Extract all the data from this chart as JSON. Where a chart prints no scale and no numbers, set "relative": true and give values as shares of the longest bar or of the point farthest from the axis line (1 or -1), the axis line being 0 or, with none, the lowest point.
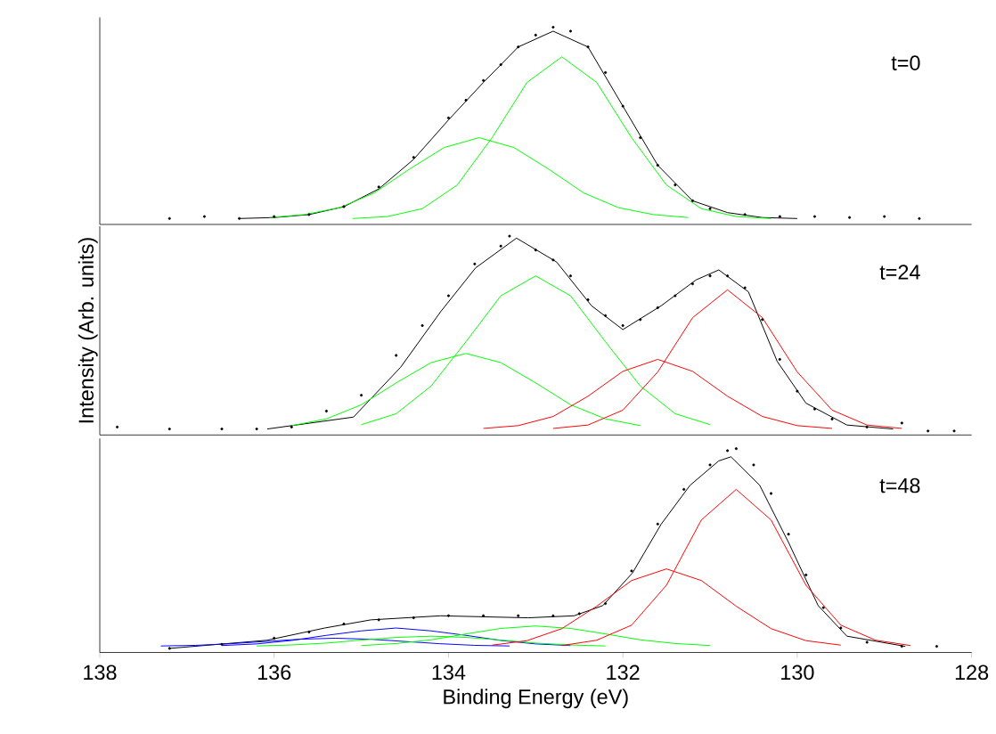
{
  "chart_data": [
    {
      "type": "line",
      "relative": true,
      "xlim": [
        138,
        128
      ],
      "tick_labels": false,
      "annotations": [
        "t=0"
      ],
      "series": [
        {
          "type": "scatter",
          "color": "#000000",
          "x": [
            137.2,
            136.8,
            136.4,
            136.0,
            135.6,
            135.2,
            134.8,
            134.4,
            134.0,
            133.8,
            133.6,
            133.4,
            133.2,
            133.0,
            132.8,
            132.6,
            132.4,
            132.2,
            132.0,
            131.8,
            131.6,
            131.4,
            131.2,
            131.0,
            130.6,
            130.2,
            129.8,
            129.4,
            129.0,
            128.6
          ],
          "values": [
            0.03,
            0.04,
            0.03,
            0.04,
            0.05,
            0.09,
            0.19,
            0.34,
            0.54,
            0.63,
            0.73,
            0.81,
            0.9,
            0.96,
            1.0,
            0.98,
            0.9,
            0.77,
            0.6,
            0.44,
            0.3,
            0.2,
            0.12,
            0.08,
            0.05,
            0.04,
            0.04,
            0.035,
            0.04,
            0.03
          ]
        },
        {
          "color": "#000000",
          "x": [
            136.4,
            136.0,
            135.6,
            135.2,
            134.8,
            134.4,
            134.0,
            133.6,
            133.2,
            132.8,
            132.4,
            132.0,
            131.6,
            131.2,
            130.8,
            130.4,
            130.0
          ],
          "values": [
            0.03,
            0.035,
            0.05,
            0.09,
            0.18,
            0.33,
            0.53,
            0.72,
            0.9,
            0.98,
            0.9,
            0.6,
            0.3,
            0.12,
            0.06,
            0.035,
            0.03
          ]
        },
        {
          "color": "#00ff00",
          "x": [
            135.1,
            134.7,
            134.3,
            133.9,
            133.5,
            133.1,
            132.7,
            132.3,
            131.9,
            131.5,
            131.1,
            130.7,
            130.3
          ],
          "values": [
            0.03,
            0.04,
            0.08,
            0.2,
            0.44,
            0.72,
            0.85,
            0.72,
            0.44,
            0.2,
            0.08,
            0.04,
            0.03
          ]
        },
        {
          "color": "#00ff00",
          "x": [
            136.05,
            135.65,
            135.25,
            134.85,
            134.45,
            134.05,
            133.65,
            133.25,
            132.85,
            132.45,
            132.05,
            131.65,
            131.25
          ],
          "values": [
            0.035,
            0.05,
            0.085,
            0.16,
            0.28,
            0.39,
            0.44,
            0.39,
            0.28,
            0.16,
            0.085,
            0.05,
            0.035
          ]
        }
      ]
    },
    {
      "type": "line",
      "relative": true,
      "xlim": [
        138,
        128
      ],
      "tick_labels": false,
      "ylabel": "Intensity (Arb. units)",
      "annotations": [
        "t=24"
      ],
      "series": [
        {
          "type": "scatter",
          "color": "#000000",
          "x": [
            137.8,
            137.2,
            136.6,
            136.2,
            135.8,
            135.4,
            135.0,
            134.6,
            134.3,
            134.0,
            133.7,
            133.4,
            133.3,
            133.0,
            132.8,
            132.6,
            132.4,
            132.2,
            132.0,
            131.8,
            131.6,
            131.4,
            131.2,
            131.0,
            130.8,
            130.6,
            130.4,
            130.2,
            130.0,
            129.8,
            129.6,
            129.2,
            128.8,
            128.5,
            128.2
          ],
          "values": [
            0.04,
            0.03,
            0.03,
            0.03,
            0.04,
            0.12,
            0.2,
            0.4,
            0.55,
            0.7,
            0.86,
            0.95,
            1.0,
            0.93,
            0.88,
            0.8,
            0.68,
            0.6,
            0.55,
            0.58,
            0.64,
            0.7,
            0.76,
            0.8,
            0.8,
            0.74,
            0.58,
            0.38,
            0.22,
            0.13,
            0.08,
            0.04,
            0.06,
            0.02,
            0.02
          ]
        },
        {
          "color": "#000000",
          "x": [
            136.08,
            135.09,
            134.55,
            134.09,
            133.69,
            133.22,
            132.76,
            132.36,
            132.0,
            131.56,
            131.16,
            130.9,
            130.56,
            130.23,
            129.9,
            129.43,
            128.9
          ],
          "values": [
            0.03,
            0.09,
            0.34,
            0.62,
            0.84,
            0.99,
            0.87,
            0.65,
            0.53,
            0.65,
            0.78,
            0.83,
            0.72,
            0.37,
            0.16,
            0.05,
            0.03
          ]
        },
        {
          "color": "#00ff00",
          "x": [
            135.8,
            135.4,
            135.0,
            134.6,
            134.2,
            133.8,
            133.4,
            133.0,
            132.6,
            132.2,
            131.8
          ],
          "values": [
            0.047,
            0.081,
            0.152,
            0.262,
            0.364,
            0.41,
            0.364,
            0.262,
            0.152,
            0.081,
            0.047
          ]
        },
        {
          "color": "#00ff00",
          "x": [
            135.0,
            134.6,
            134.2,
            133.8,
            133.4,
            133.0,
            132.6,
            132.2,
            131.8,
            131.4,
            131.0
          ],
          "values": [
            0.052,
            0.107,
            0.246,
            0.469,
            0.7,
            0.8,
            0.7,
            0.469,
            0.246,
            0.107,
            0.052
          ]
        },
        {
          "color": "#ff0000",
          "x": [
            133.6,
            133.2,
            132.8,
            132.4,
            132.0,
            131.6,
            131.2,
            130.8,
            130.4,
            130.0,
            129.6
          ],
          "values": [
            0.033,
            0.047,
            0.093,
            0.195,
            0.32,
            0.38,
            0.32,
            0.195,
            0.093,
            0.047,
            0.033
          ]
        },
        {
          "color": "#ff0000",
          "x": [
            132.8,
            132.4,
            132.0,
            131.6,
            131.2,
            130.8,
            130.4,
            130.0,
            129.6,
            129.2,
            128.8
          ],
          "values": [
            0.033,
            0.05,
            0.125,
            0.317,
            0.59,
            0.73,
            0.59,
            0.317,
            0.125,
            0.05,
            0.033
          ]
        }
      ]
    },
    {
      "type": "line",
      "relative": true,
      "xlim": [
        138,
        128
      ],
      "xticks": [
        138,
        136,
        134,
        132,
        130,
        128
      ],
      "tick_labels": "x",
      "xlabel": "Binding Energy (eV)",
      "annotations": [
        "t=48"
      ],
      "series": [
        {
          "type": "scatter",
          "color": "#000000",
          "x": [
            137.2,
            136.6,
            136.0,
            135.6,
            135.2,
            134.8,
            134.4,
            134.0,
            133.6,
            133.2,
            132.8,
            132.5,
            132.2,
            131.9,
            131.6,
            131.3,
            131.0,
            130.8,
            130.7,
            130.5,
            130.3,
            130.1,
            129.9,
            129.7,
            129.5,
            129.2,
            128.8,
            128.4
          ],
          "values": [
            0.02,
            0.04,
            0.07,
            0.1,
            0.14,
            0.16,
            0.17,
            0.18,
            0.18,
            0.18,
            0.18,
            0.19,
            0.24,
            0.4,
            0.63,
            0.8,
            0.92,
            0.99,
            1.0,
            0.92,
            0.78,
            0.58,
            0.38,
            0.22,
            0.12,
            0.05,
            0.03,
            0.03
          ]
        },
        {
          "color": "#000000",
          "x": [
            137.2,
            136.08,
            135.42,
            134.89,
            134.09,
            133.09,
            132.56,
            132.23,
            131.89,
            131.56,
            131.23,
            130.9,
            130.76,
            130.43,
            130.1,
            129.76,
            129.43,
            128.76
          ],
          "values": [
            0.02,
            0.06,
            0.12,
            0.16,
            0.18,
            0.17,
            0.18,
            0.23,
            0.39,
            0.63,
            0.82,
            0.94,
            0.96,
            0.82,
            0.54,
            0.23,
            0.08,
            0.03
          ]
        },
        {
          "color": "#0000ff",
          "x": [
            137.3,
            136.9,
            136.5,
            136.1,
            135.7,
            135.3,
            134.9,
            134.5,
            134.1,
            133.7,
            133.3
          ],
          "values": [
            0.032,
            0.035,
            0.043,
            0.054,
            0.065,
            0.07,
            0.065,
            0.054,
            0.043,
            0.035,
            0.032
          ]
        },
        {
          "color": "#0000ff",
          "x": [
            136.6,
            136.2,
            135.8,
            135.4,
            135.0,
            134.6,
            134.2,
            133.8,
            133.4,
            133.0,
            132.6
          ],
          "values": [
            0.034,
            0.042,
            0.059,
            0.084,
            0.106,
            0.12,
            0.106,
            0.084,
            0.059,
            0.042,
            0.034
          ]
        },
        {
          "color": "#00ff00",
          "x": [
            136.2,
            135.8,
            135.4,
            135.0,
            134.6,
            134.2,
            133.8,
            133.4,
            133.0,
            132.6,
            132.2
          ],
          "values": [
            0.032,
            0.037,
            0.046,
            0.061,
            0.074,
            0.08,
            0.074,
            0.061,
            0.046,
            0.037,
            0.032
          ]
        },
        {
          "color": "#00ff00",
          "x": [
            135.0,
            134.6,
            134.2,
            133.8,
            133.4,
            133.0,
            132.6,
            132.2,
            131.8,
            131.4,
            131.0
          ],
          "values": [
            0.034,
            0.044,
            0.062,
            0.091,
            0.118,
            0.13,
            0.118,
            0.091,
            0.062,
            0.044,
            0.034
          ]
        },
        {
          "color": "#ff0000",
          "x": [
            133.5,
            133.1,
            132.7,
            132.3,
            131.9,
            131.5,
            131.1,
            130.7,
            130.3,
            129.9,
            129.5
          ],
          "values": [
            0.036,
            0.058,
            0.117,
            0.227,
            0.353,
            0.41,
            0.353,
            0.227,
            0.117,
            0.058,
            0.036
          ]
        },
        {
          "color": "#ff0000",
          "x": [
            132.7,
            132.3,
            131.9,
            131.5,
            131.1,
            130.7,
            130.3,
            129.9,
            129.5,
            129.1,
            128.7
          ],
          "values": [
            0.034,
            0.06,
            0.134,
            0.33,
            0.65,
            0.8,
            0.65,
            0.33,
            0.134,
            0.06,
            0.034
          ]
        }
      ]
    }
  ]
}
